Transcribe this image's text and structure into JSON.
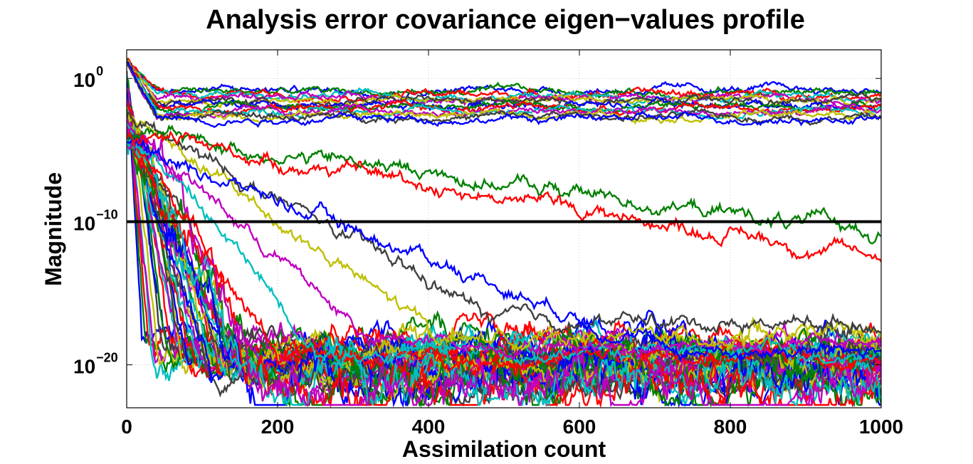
{
  "chart_data": {
    "type": "line",
    "title": "Analysis error covariance eigen−values profile",
    "xlabel": "Assimilation count",
    "ylabel": "Magnitude",
    "y_scale": "log",
    "xlim": [
      0,
      1000
    ],
    "ylim": [
      1e-23,
      100.0
    ],
    "x_ticks": [
      0,
      200,
      400,
      600,
      800,
      1000
    ],
    "x_tick_labels": [
      "0",
      "200",
      "400",
      "600",
      "800",
      "1000"
    ],
    "y_ticks": [
      {
        "base": "10",
        "exp": "0",
        "value": 1
      },
      {
        "base": "10",
        "exp": "−10",
        "value": 1e-10
      },
      {
        "base": "10",
        "exp": "−20",
        "value": 1e-20
      }
    ],
    "grid": true,
    "threshold_line": {
      "y": 1e-10,
      "color": "#000000"
    },
    "colors": [
      "#0000ff",
      "#008000",
      "#ff0000",
      "#00bfbf",
      "#bf00bf",
      "#bfbf00",
      "#404040"
    ],
    "series_groups": [
      {
        "description": "plateau (converged-high) eigenvalues",
        "count": 15,
        "level_range_exp": [
          -0.8,
          -2.8
        ]
      },
      {
        "description": "slow decaying eigenvalues",
        "count": 8,
        "final_exp": [
          -4.5,
          -5.5,
          -6.5,
          -7.0,
          -7.5,
          -8.5,
          -10.8,
          -12.5
        ]
      },
      {
        "description": "fast decaying to noise floor",
        "count": 40,
        "floor_exp_range": [
          -18.5,
          -21.5
        ]
      }
    ]
  }
}
